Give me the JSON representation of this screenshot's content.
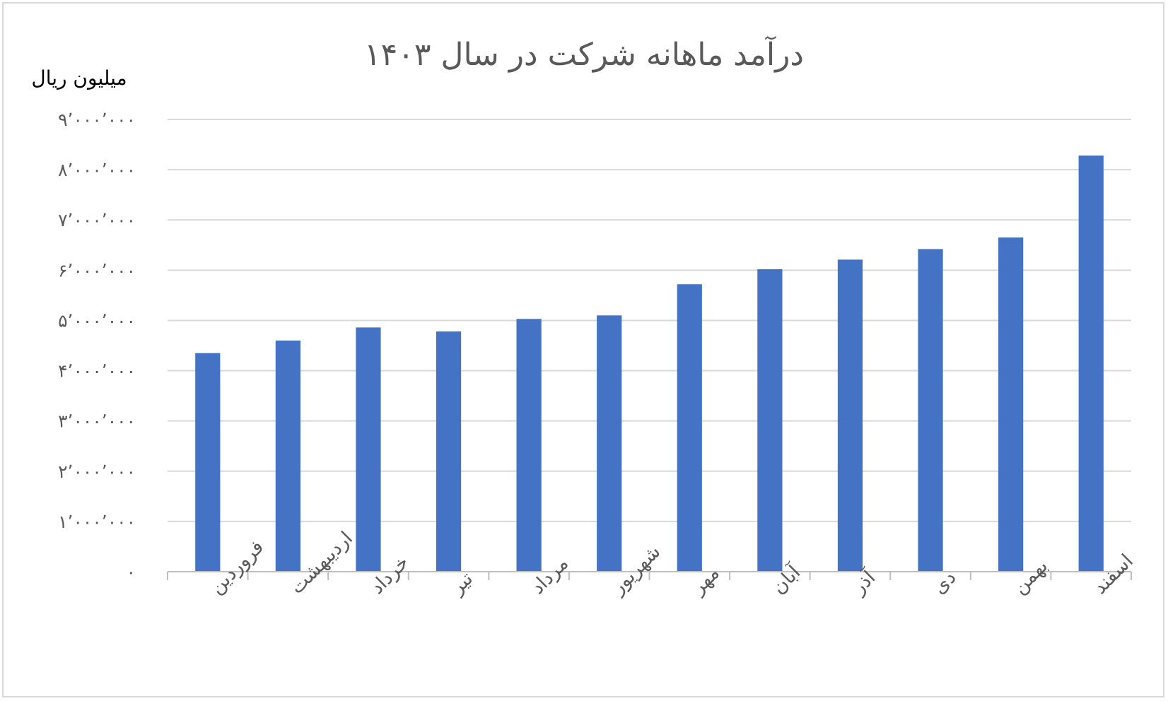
{
  "colors": {
    "bar": "#4472c4",
    "gridline": "#d9d9d9",
    "axis": "#bfbfbf",
    "text": "#595959",
    "border": "#d9d9d9"
  },
  "chart_data": {
    "type": "bar",
    "title": "درآمد ماهانه شرکت در سال ۱۴۰۳",
    "ylabel": "میلیون ریال",
    "xlabel": "",
    "categories": [
      "فروردین",
      "اردیبهشت",
      "خرداد",
      "تیر",
      "مرداد",
      "شهریور",
      "مهر",
      "آبان",
      "آذر",
      "دی",
      "بهمن",
      "اسفند"
    ],
    "series": [
      {
        "values": [
          4350000,
          4600000,
          4860000,
          4780000,
          5030000,
          5100000,
          5720000,
          6020000,
          6210000,
          6420000,
          6650000,
          8280000
        ]
      }
    ],
    "ylim": [
      0,
      9000000
    ],
    "yticks": [
      0,
      1000000,
      2000000,
      3000000,
      4000000,
      5000000,
      6000000,
      7000000,
      8000000,
      9000000
    ],
    "ytick_labels": [
      "۰",
      "۱٬۰۰۰٬۰۰۰",
      "۲٬۰۰۰٬۰۰۰",
      "۳٬۰۰۰٬۰۰۰",
      "۴٬۰۰۰٬۰۰۰",
      "۵٬۰۰۰٬۰۰۰",
      "۶٬۰۰۰٬۰۰۰",
      "۷٬۰۰۰٬۰۰۰",
      "۸٬۰۰۰٬۰۰۰",
      "۹٬۰۰۰٬۰۰۰"
    ],
    "grid": true,
    "legend": "none"
  }
}
